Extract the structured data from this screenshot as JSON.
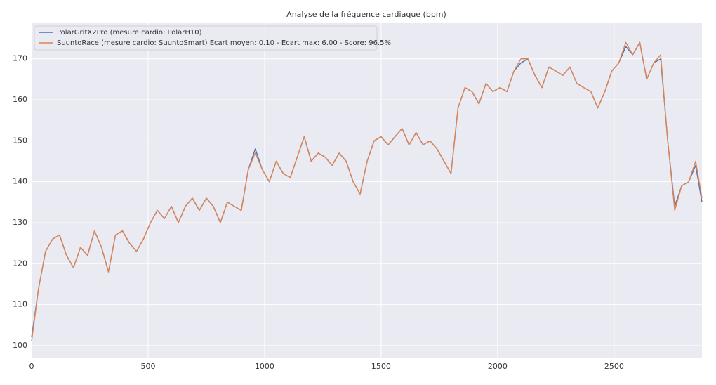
{
  "chart_data": {
    "type": "line",
    "title": "Analyse de la fréquence cardiaque (bpm)",
    "x": [
      0,
      30,
      60,
      90,
      120,
      150,
      180,
      210,
      240,
      270,
      300,
      330,
      360,
      390,
      420,
      450,
      480,
      510,
      540,
      570,
      600,
      630,
      660,
      690,
      720,
      750,
      780,
      810,
      840,
      870,
      900,
      930,
      960,
      990,
      1020,
      1050,
      1080,
      1110,
      1140,
      1170,
      1200,
      1230,
      1260,
      1290,
      1320,
      1350,
      1380,
      1410,
      1440,
      1470,
      1500,
      1530,
      1560,
      1590,
      1620,
      1650,
      1680,
      1710,
      1740,
      1770,
      1800,
      1830,
      1860,
      1890,
      1920,
      1950,
      1980,
      2010,
      2040,
      2070,
      2100,
      2130,
      2160,
      2190,
      2220,
      2250,
      2280,
      2310,
      2340,
      2370,
      2400,
      2430,
      2460,
      2490,
      2520,
      2550,
      2580,
      2610,
      2640,
      2670,
      2700,
      2730,
      2760,
      2790,
      2820,
      2850,
      2877
    ],
    "series": [
      {
        "name": "PolarGritX2Pro (mesure cardio: PolarH10)",
        "color": "#4c72b0",
        "values": [
          102,
          114,
          123,
          126,
          127,
          122,
          119,
          124,
          122,
          128,
          124,
          118,
          127,
          128,
          125,
          123,
          126,
          130,
          133,
          131,
          134,
          130,
          134,
          136,
          133,
          136,
          134,
          130,
          135,
          134,
          133,
          143,
          148,
          143,
          140,
          145,
          142,
          141,
          146,
          151,
          145,
          147,
          146,
          144,
          147,
          145,
          140,
          137,
          145,
          150,
          151,
          149,
          151,
          153,
          149,
          152,
          149,
          150,
          148,
          145,
          142,
          158,
          163,
          162,
          159,
          164,
          162,
          163,
          162,
          167,
          169,
          170,
          166,
          163,
          168,
          167,
          166,
          168,
          164,
          163,
          162,
          158,
          162,
          167,
          169,
          173,
          171,
          174,
          165,
          169,
          170,
          150,
          134,
          139,
          140,
          144,
          135
        ]
      },
      {
        "name": "SuuntoRace (mesure cardio: SuuntoSmart) Ecart moyen: 0.10 - Ecart max: 6.00 - Score: 96.5%",
        "color": "#dd8452",
        "values": [
          101,
          114,
          123,
          126,
          127,
          122,
          119,
          124,
          122,
          128,
          124,
          118,
          127,
          128,
          125,
          123,
          126,
          130,
          133,
          131,
          134,
          130,
          134,
          136,
          133,
          136,
          134,
          130,
          135,
          134,
          133,
          143,
          147,
          143,
          140,
          145,
          142,
          141,
          146,
          151,
          145,
          147,
          146,
          144,
          147,
          145,
          140,
          137,
          145,
          150,
          151,
          149,
          151,
          153,
          149,
          152,
          149,
          150,
          148,
          145,
          142,
          158,
          163,
          162,
          159,
          164,
          162,
          163,
          162,
          167,
          170,
          170,
          166,
          163,
          168,
          167,
          166,
          168,
          164,
          163,
          162,
          158,
          162,
          167,
          169,
          174,
          171,
          174,
          165,
          169,
          171,
          150,
          133,
          139,
          140,
          145,
          136
        ]
      }
    ],
    "xlim": [
      0,
      2877
    ],
    "xticks": [
      0,
      500,
      1000,
      1500,
      2000,
      2500
    ],
    "ylim": [
      96.9,
      178.7
    ],
    "yticks": [
      100,
      110,
      120,
      130,
      140,
      150,
      160,
      170
    ],
    "grid": true,
    "legend": "upper left"
  }
}
